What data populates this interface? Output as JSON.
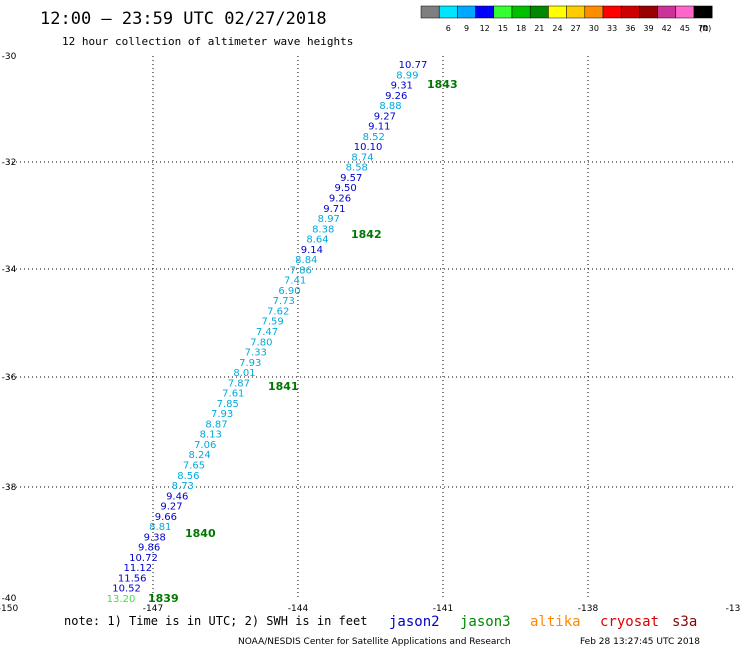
{
  "title": "12:00 – 23:59 UTC 02/27/2018",
  "subtitle": "12 hour collection of altimeter wave heights",
  "legend": {
    "unit": "(ft)",
    "bins": [
      {
        "label": "3",
        "color": "#7f7f7f"
      },
      {
        "label": "6",
        "color": "#00e5ff"
      },
      {
        "label": "9",
        "color": "#00a8ff"
      },
      {
        "label": "12",
        "color": "#0000ff"
      },
      {
        "label": "15",
        "color": "#33ff33"
      },
      {
        "label": "18",
        "color": "#00c000"
      },
      {
        "label": "21",
        "color": "#008800"
      },
      {
        "label": "24",
        "color": "#ffff00"
      },
      {
        "label": "27",
        "color": "#ffcc00"
      },
      {
        "label": "30",
        "color": "#ff8c00"
      },
      {
        "label": "33",
        "color": "#ff0000"
      },
      {
        "label": "36",
        "color": "#cc0000"
      },
      {
        "label": "39",
        "color": "#990000"
      },
      {
        "label": "42",
        "color": "#cc3399"
      },
      {
        "label": "45",
        "color": "#ff66cc"
      },
      {
        "label": "70",
        "color": "#000000"
      }
    ]
  },
  "axes": {
    "lon_ticks": [
      "-150",
      "-147",
      "-144",
      "-141",
      "-138",
      "-13"
    ],
    "lat_ticks": [
      "-30",
      "-32",
      "-34",
      "-36",
      "-38",
      "-40"
    ]
  },
  "observations": [
    {
      "v": "10.77",
      "color": "#0000cc"
    },
    {
      "v": "8.99",
      "color": "#00aadd"
    },
    {
      "v": "9.31",
      "color": "#0000cc"
    },
    {
      "v": "9.26",
      "color": "#0000cc"
    },
    {
      "v": "8.88",
      "color": "#00aadd"
    },
    {
      "v": "9.27",
      "color": "#0000cc"
    },
    {
      "v": "9.11",
      "color": "#0000cc"
    },
    {
      "v": "8.52",
      "color": "#00aadd"
    },
    {
      "v": "10.10",
      "color": "#0000cc"
    },
    {
      "v": "8.74",
      "color": "#00aadd"
    },
    {
      "v": "8.58",
      "color": "#00aadd"
    },
    {
      "v": "9.57",
      "color": "#0000cc"
    },
    {
      "v": "9.50",
      "color": "#0000cc"
    },
    {
      "v": "9.26",
      "color": "#0000cc"
    },
    {
      "v": "9.71",
      "color": "#0000cc"
    },
    {
      "v": "8.97",
      "color": "#00aadd"
    },
    {
      "v": "8.38",
      "color": "#00aadd"
    },
    {
      "v": "8.64",
      "color": "#00aadd"
    },
    {
      "v": "9.14",
      "color": "#0000cc"
    },
    {
      "v": "8.84",
      "color": "#00aadd"
    },
    {
      "v": "7.86",
      "color": "#00aadd"
    },
    {
      "v": "7.41",
      "color": "#00aadd"
    },
    {
      "v": "6.90",
      "color": "#00aadd"
    },
    {
      "v": "7.73",
      "color": "#00aadd"
    },
    {
      "v": "7.62",
      "color": "#00aadd"
    },
    {
      "v": "7.59",
      "color": "#00aadd"
    },
    {
      "v": "7.47",
      "color": "#00aadd"
    },
    {
      "v": "7.80",
      "color": "#00aadd"
    },
    {
      "v": "7.33",
      "color": "#00aadd"
    },
    {
      "v": "7.93",
      "color": "#00aadd"
    },
    {
      "v": "8.01",
      "color": "#00aadd"
    },
    {
      "v": "7.87",
      "color": "#00aadd"
    },
    {
      "v": "7.61",
      "color": "#00aadd"
    },
    {
      "v": "7.85",
      "color": "#00aadd"
    },
    {
      "v": "7.93",
      "color": "#00aadd"
    },
    {
      "v": "8.87",
      "color": "#00aadd"
    },
    {
      "v": "8.13",
      "color": "#00aadd"
    },
    {
      "v": "7.06",
      "color": "#00aadd"
    },
    {
      "v": "8.24",
      "color": "#00aadd"
    },
    {
      "v": "7.65",
      "color": "#00aadd"
    },
    {
      "v": "8.56",
      "color": "#00aadd"
    },
    {
      "v": "8.73",
      "color": "#00aadd"
    },
    {
      "v": "9.46",
      "color": "#0000cc"
    },
    {
      "v": "9.27",
      "color": "#0000cc"
    },
    {
      "v": "9.66",
      "color": "#0000cc"
    },
    {
      "v": "8.81",
      "color": "#00aadd"
    },
    {
      "v": "9.38",
      "color": "#0000cc"
    },
    {
      "v": "9.86",
      "color": "#0000cc"
    },
    {
      "v": "10.72",
      "color": "#0000cc"
    },
    {
      "v": "11.12",
      "color": "#0000cc"
    },
    {
      "v": "11.56",
      "color": "#0000cc"
    },
    {
      "v": "10.52",
      "color": "#0000cc"
    },
    {
      "v": "13.20",
      "color": "#44dd44"
    }
  ],
  "times": [
    "1843",
    "1842",
    "1841",
    "1840",
    "1839"
  ],
  "note": "note: 1) Time is in UTC; 2) SWH is in feet",
  "satellites": [
    {
      "name": "jason2",
      "color": "#0000cc"
    },
    {
      "name": "jason3",
      "color": "#008800"
    },
    {
      "name": "altika",
      "color": "#ff8800"
    },
    {
      "name": "cryosat",
      "color": "#dd0000"
    },
    {
      "name": "s3a",
      "color": "#880000"
    }
  ],
  "credit": "NOAA/NESDIS Center for Satellite Applications and Research",
  "generated": "Feb 28 13:27:45 UTC 2018"
}
